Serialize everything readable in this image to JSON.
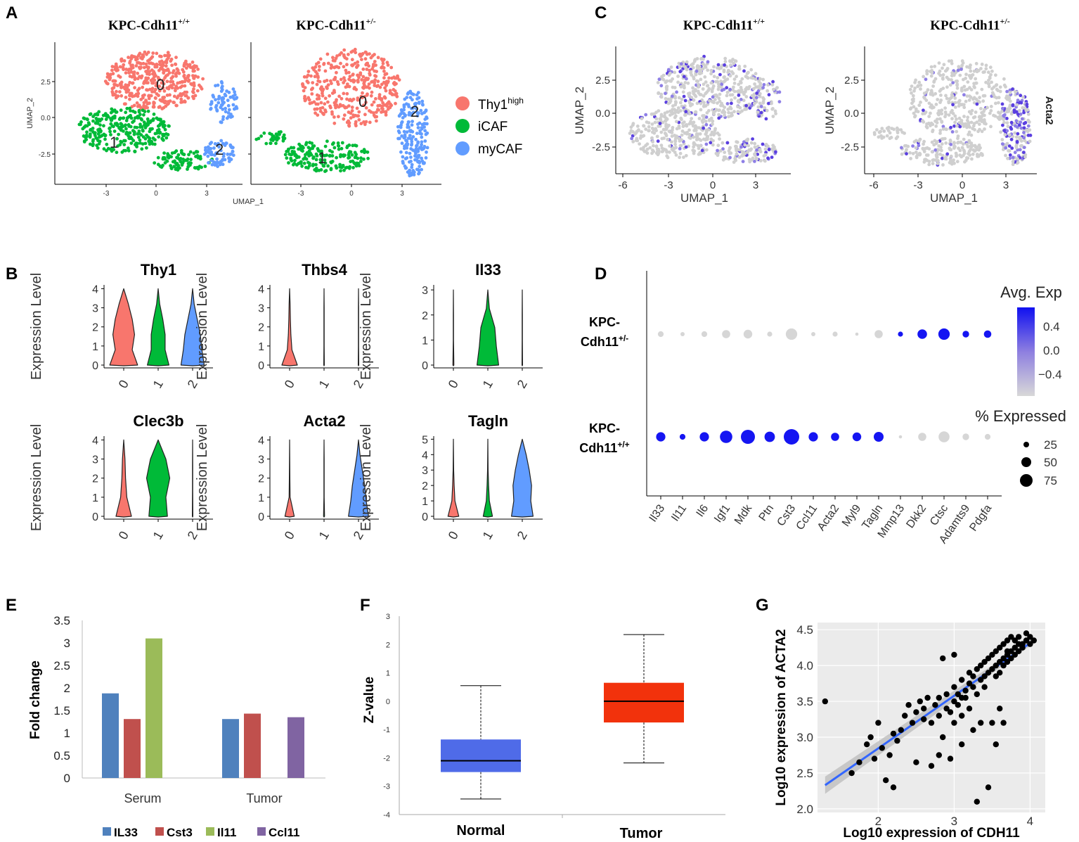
{
  "colors": {
    "thy1": "#F8766D",
    "icaf": "#00BA38",
    "mycaf": "#619CFF",
    "grey": "#D3D3D3",
    "dot_hi": "#0000FF",
    "il33": "#4F81BD",
    "cst3": "#C0504D",
    "il11": "#9BBB59",
    "ccl11": "#8064A2",
    "normal_box": "#4F6BE8",
    "tumor_box": "#F2320C",
    "fit_line": "#3366FF"
  },
  "panel_labels": [
    "A",
    "B",
    "C",
    "D",
    "E",
    "F",
    "G"
  ],
  "panel_a": {
    "title_left": "KPC-Cdh11",
    "title_left_sup": "+/+",
    "title_right": "KPC-Cdh11",
    "title_right_sup": "+/-",
    "xlabel": "UMAP_1",
    "ylabel": "UMAP_2",
    "xticks": [
      "-3",
      "0",
      "3"
    ],
    "yticks": [
      "2.5",
      "0.0",
      "-2.5"
    ],
    "cluster_labels": [
      "0",
      "1",
      "2"
    ],
    "legend": [
      {
        "label": "Thy1",
        "sup": "high",
        "color": "#F8766D"
      },
      {
        "label": "iCAF",
        "sup": "",
        "color": "#00BA38"
      },
      {
        "label": "myCAF",
        "sup": "",
        "color": "#619CFF"
      }
    ]
  },
  "panel_b": {
    "ylabel": "Expression Level",
    "xticks": [
      "0",
      "1",
      "2"
    ],
    "violins": [
      {
        "gene": "Thy1",
        "ymax": 4,
        "yticks": [
          "0",
          "1",
          "2",
          "3",
          "4"
        ]
      },
      {
        "gene": "Thbs4",
        "ymax": 4,
        "yticks": [
          "0",
          "1",
          "2",
          "3",
          "4"
        ]
      },
      {
        "gene": "Il33",
        "ymax": 3,
        "yticks": [
          "0",
          "1",
          "2",
          "3"
        ]
      },
      {
        "gene": "Clec3b",
        "ymax": 4,
        "yticks": [
          "0",
          "1",
          "2",
          "3",
          "4"
        ]
      },
      {
        "gene": "Acta2",
        "ymax": 4,
        "yticks": [
          "0",
          "1",
          "2",
          "3",
          "4"
        ]
      },
      {
        "gene": "Tagln",
        "ymax": 5,
        "yticks": [
          "0",
          "1",
          "2",
          "3",
          "4",
          "5"
        ]
      }
    ]
  },
  "panel_c": {
    "title_left": "KPC-Cdh11",
    "title_left_sup": "+/+",
    "title_right": "KPC-Cdh11",
    "title_right_sup": "+/-",
    "xlabel": "UMAP_1",
    "ylabel": "UMAP_2",
    "xticks": [
      "-6",
      "-3",
      "0",
      "3"
    ],
    "yticks": [
      "2.5",
      "0.0",
      "-2.5"
    ],
    "feature": "Acta2"
  },
  "panel_d": {
    "rows": [
      {
        "line1": "KPC-",
        "line2": "Cdh11",
        "sup": "+/-"
      },
      {
        "line1": "KPC-",
        "line2": "Cdh11",
        "sup": "+/+"
      }
    ],
    "genes": [
      "Il33",
      "Il11",
      "Il6",
      "Igf1",
      "Mdk",
      "Ptn",
      "Cst3",
      "Ccl11",
      "Acta2",
      "Myl9",
      "Tagln",
      "Mmp13",
      "Dkk2",
      "Ctsc",
      "Adamts9",
      "Pdgfa"
    ],
    "pct_het": [
      15,
      8,
      15,
      30,
      35,
      12,
      60,
      8,
      12,
      5,
      30,
      12,
      42,
      60,
      20,
      25
    ],
    "exp_het": [
      -0.5,
      -0.5,
      -0.5,
      -0.5,
      -0.5,
      -0.5,
      -0.5,
      -0.5,
      -0.5,
      -0.5,
      -0.5,
      0.5,
      0.5,
      0.5,
      0.5,
      0.5
    ],
    "pct_wt": [
      40,
      15,
      40,
      70,
      90,
      50,
      110,
      40,
      30,
      35,
      45,
      5,
      30,
      55,
      20,
      15
    ],
    "exp_wt": [
      0.5,
      0.5,
      0.5,
      0.5,
      0.5,
      0.5,
      0.5,
      0.5,
      0.5,
      0.5,
      0.5,
      -0.5,
      -0.5,
      -0.5,
      -0.5,
      -0.5
    ],
    "legend_color_title": "Avg. Exp",
    "legend_color_ticks": [
      "0.4",
      "0.0",
      "−0.4"
    ],
    "legend_size_title": "% Expressed",
    "legend_size_ticks": [
      "25",
      "50",
      "75"
    ]
  },
  "chart_data": [
    {
      "type": "bar",
      "panel": "E",
      "ylabel": "Fold change",
      "categories": [
        "Serum",
        "Tumor"
      ],
      "yticks": [
        "0",
        "0.5",
        "1",
        "1.5",
        "2",
        "2.5",
        "3",
        "3.5"
      ],
      "ylim": [
        0,
        3.5
      ],
      "series": [
        {
          "name": "IL33",
          "values": [
            1.88,
            1.31
          ]
        },
        {
          "name": "Cst3",
          "values": [
            1.31,
            1.43
          ]
        },
        {
          "name": "Il11",
          "values": [
            3.1,
            null
          ]
        },
        {
          "name": "Ccl11",
          "values": [
            null,
            1.35
          ]
        }
      ]
    },
    {
      "type": "box",
      "panel": "F",
      "ylabel": "Z-value",
      "categories": [
        "Normal",
        "Tumor"
      ],
      "yticks": [
        "3",
        "2",
        "1",
        "0",
        "-1",
        "-2",
        "-3",
        "-4"
      ],
      "ylim": [
        -4,
        3
      ],
      "boxes": [
        {
          "name": "Normal",
          "min": -3.45,
          "q1": -2.5,
          "median": -2.1,
          "q3": -1.35,
          "max": 0.55
        },
        {
          "name": "Tumor",
          "min": -2.18,
          "q1": -0.75,
          "median": 0.0,
          "q3": 0.65,
          "max": 2.35
        }
      ]
    },
    {
      "type": "scatter",
      "panel": "G",
      "xlabel": "Log10 expression of CDH11",
      "ylabel": "Log10 expression of ACTA2",
      "xticks": [
        "2",
        "3",
        "4"
      ],
      "yticks": [
        "2.0",
        "2.5",
        "3.0",
        "3.5",
        "4.0",
        "4.5"
      ],
      "xlim": [
        1.2,
        4.2
      ],
      "ylim": [
        1.95,
        4.6
      ],
      "fit": {
        "x0": 1.3,
        "y0": 2.33,
        "x1": 4.05,
        "y1": 4.35
      },
      "points": [
        [
          1.3,
          3.5
        ],
        [
          1.65,
          2.5
        ],
        [
          1.75,
          2.65
        ],
        [
          1.85,
          2.9
        ],
        [
          1.9,
          3.0
        ],
        [
          1.95,
          2.7
        ],
        [
          2.0,
          3.2
        ],
        [
          2.05,
          2.85
        ],
        [
          2.1,
          2.4
        ],
        [
          2.15,
          2.75
        ],
        [
          2.2,
          2.3
        ],
        [
          2.2,
          3.05
        ],
        [
          2.25,
          2.95
        ],
        [
          2.3,
          3.1
        ],
        [
          2.35,
          3.3
        ],
        [
          2.4,
          3.45
        ],
        [
          2.45,
          3.2
        ],
        [
          2.5,
          3.35
        ],
        [
          2.5,
          2.65
        ],
        [
          2.55,
          3.5
        ],
        [
          2.6,
          3.25
        ],
        [
          2.6,
          3.4
        ],
        [
          2.65,
          3.55
        ],
        [
          2.7,
          3.2
        ],
        [
          2.7,
          2.6
        ],
        [
          2.75,
          3.45
        ],
        [
          2.8,
          3.3
        ],
        [
          2.8,
          3.55
        ],
        [
          2.85,
          3.0
        ],
        [
          2.85,
          4.1
        ],
        [
          2.9,
          3.4
        ],
        [
          2.9,
          3.6
        ],
        [
          2.95,
          3.35
        ],
        [
          2.95,
          2.7
        ],
        [
          3.0,
          3.5
        ],
        [
          3.0,
          3.7
        ],
        [
          3.0,
          4.15
        ],
        [
          3.05,
          3.45
        ],
        [
          3.05,
          3.6
        ],
        [
          3.1,
          3.8
        ],
        [
          3.1,
          3.3
        ],
        [
          3.1,
          2.9
        ],
        [
          3.15,
          3.65
        ],
        [
          3.15,
          3.55
        ],
        [
          3.2,
          3.75
        ],
        [
          3.2,
          3.4
        ],
        [
          3.2,
          3.9
        ],
        [
          3.25,
          3.7
        ],
        [
          3.25,
          3.85
        ],
        [
          3.3,
          3.6
        ],
        [
          3.3,
          3.95
        ],
        [
          3.3,
          2.1
        ],
        [
          3.35,
          3.8
        ],
        [
          3.35,
          4.0
        ],
        [
          3.35,
          3.2
        ],
        [
          3.4,
          3.85
        ],
        [
          3.4,
          4.05
        ],
        [
          3.4,
          3.7
        ],
        [
          3.45,
          3.9
        ],
        [
          3.45,
          4.1
        ],
        [
          3.45,
          2.3
        ],
        [
          3.5,
          3.95
        ],
        [
          3.5,
          4.15
        ],
        [
          3.5,
          3.2
        ],
        [
          3.55,
          4.0
        ],
        [
          3.55,
          4.2
        ],
        [
          3.55,
          3.85
        ],
        [
          3.6,
          4.05
        ],
        [
          3.6,
          4.25
        ],
        [
          3.6,
          3.9
        ],
        [
          3.6,
          3.4
        ],
        [
          3.65,
          4.1
        ],
        [
          3.65,
          4.3
        ],
        [
          3.65,
          4.0
        ],
        [
          3.7,
          4.15
        ],
        [
          3.7,
          4.35
        ],
        [
          3.7,
          4.2
        ],
        [
          3.7,
          4.05
        ],
        [
          3.75,
          4.2
        ],
        [
          3.75,
          4.4
        ],
        [
          3.75,
          4.1
        ],
        [
          3.8,
          4.25
        ],
        [
          3.8,
          4.35
        ],
        [
          3.8,
          4.15
        ],
        [
          3.85,
          4.3
        ],
        [
          3.85,
          4.2
        ],
        [
          3.85,
          4.4
        ],
        [
          3.9,
          4.3
        ],
        [
          3.9,
          4.25
        ],
        [
          3.95,
          4.35
        ],
        [
          3.95,
          4.45
        ],
        [
          4.0,
          4.3
        ],
        [
          4.0,
          4.4
        ],
        [
          4.05,
          4.35
        ],
        [
          3.55,
          2.9
        ],
        [
          3.65,
          3.2
        ],
        [
          2.8,
          2.75
        ],
        [
          3.0,
          3.2
        ],
        [
          3.25,
          3.1
        ],
        [
          3.1,
          3.55
        ]
      ]
    }
  ],
  "panel_e_legend": [
    "IL33",
    "Cst3",
    "Il11",
    "Ccl11"
  ]
}
